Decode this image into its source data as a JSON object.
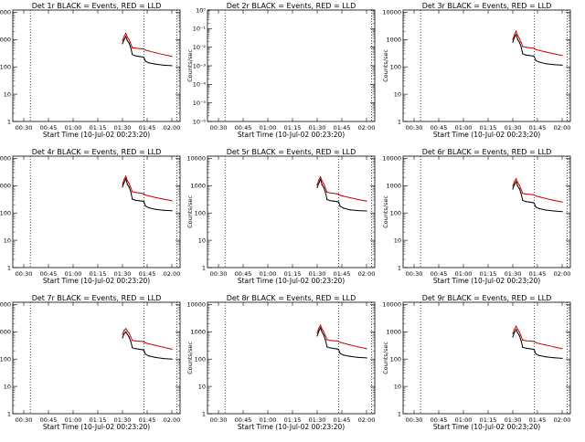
{
  "chart_data": [
    {
      "type": "line",
      "title": "Det 1r BLACK = Events, RED = LLD",
      "xlabel": "Start Time (10-Jul-02 00:23:20)",
      "ylabel": "Counts/sec",
      "scale": "log",
      "ylim": [
        1,
        12000
      ],
      "xlim": [
        "00:23:20",
        "02:05:00"
      ],
      "x_ticks": [
        "00:30",
        "00:45",
        "01:00",
        "01:15",
        "01:30",
        "01:45",
        "02:00"
      ],
      "y_ticks": [
        "1",
        "10",
        "100",
        "1000",
        "10000"
      ],
      "vlines": [
        "00:34",
        "01:43",
        "02:03"
      ],
      "series": [
        {
          "name": "Events",
          "color": "#000000",
          "x": [
            "01:30",
            "01:31",
            "01:32",
            "01:33",
            "01:34",
            "01:35",
            "01:36",
            "01:38",
            "01:40",
            "01:42",
            "01:43",
            "01:44",
            "01:46",
            "01:50",
            "01:55",
            "02:00"
          ],
          "values": [
            700,
            1000,
            1300,
            900,
            750,
            500,
            280,
            250,
            240,
            230,
            220,
            160,
            140,
            125,
            115,
            110
          ]
        },
        {
          "name": "LLD",
          "color": "#cc0000",
          "x": [
            "01:30",
            "01:31",
            "01:32",
            "01:33",
            "01:34",
            "01:35",
            "01:36",
            "01:38",
            "01:40",
            "01:42",
            "01:43",
            "01:44",
            "01:46",
            "01:50",
            "01:55",
            "02:00"
          ],
          "values": [
            900,
            1300,
            1700,
            1200,
            1000,
            700,
            500,
            480,
            470,
            460,
            450,
            410,
            380,
            330,
            280,
            240
          ]
        }
      ]
    },
    {
      "type": "line",
      "title": "Det 2r BLACK = Events, RED = LLD",
      "xlabel": "Start Time (10-Jul-02 00:23:20)",
      "ylabel": "Counts/sec",
      "scale": "log",
      "ylim": [
        1e-06,
        1
      ],
      "xlim": [
        "00:23:20",
        "02:05:00"
      ],
      "x_ticks": [
        "00:30",
        "00:45",
        "01:00",
        "01:15",
        "01:30",
        "01:45",
        "02:00"
      ],
      "y_ticks": [
        "10⁻⁶",
        "10⁻⁵",
        "10⁻⁴",
        "10⁻³",
        "10⁻²",
        "10⁻¹",
        "10⁰"
      ],
      "vlines": [
        "00:34",
        "02:03"
      ],
      "series": []
    },
    {
      "type": "line",
      "title": "Det 3r BLACK = Events, RED = LLD",
      "xlabel": "Start Time (10-Jul-02 00:23:20)",
      "ylabel": "Counts/sec",
      "scale": "log",
      "ylim": [
        1,
        12000
      ],
      "xlim": [
        "00:23:20",
        "02:05:00"
      ],
      "x_ticks": [
        "00:30",
        "00:45",
        "01:00",
        "01:15",
        "01:30",
        "01:45",
        "02:00"
      ],
      "y_ticks": [
        "1",
        "10",
        "100",
        "1000",
        "10000"
      ],
      "vlines": [
        "00:34",
        "01:43",
        "02:03"
      ],
      "series": [
        {
          "name": "Events",
          "color": "#000000",
          "x": [
            "01:30",
            "01:31",
            "01:32",
            "01:33",
            "01:34",
            "01:35",
            "01:36",
            "01:38",
            "01:40",
            "01:42",
            "01:43",
            "01:44",
            "01:46",
            "01:50",
            "01:55",
            "02:00"
          ],
          "values": [
            800,
            1200,
            1500,
            1000,
            800,
            550,
            300,
            270,
            260,
            250,
            240,
            170,
            150,
            130,
            120,
            115
          ]
        },
        {
          "name": "LLD",
          "color": "#cc0000",
          "x": [
            "01:30",
            "01:31",
            "01:32",
            "01:33",
            "01:34",
            "01:35",
            "01:36",
            "01:38",
            "01:40",
            "01:42",
            "01:43",
            "01:44",
            "01:46",
            "01:50",
            "01:55",
            "02:00"
          ],
          "values": [
            1000,
            1500,
            2000,
            1400,
            1100,
            800,
            560,
            520,
            500,
            490,
            480,
            430,
            400,
            350,
            300,
            260
          ]
        }
      ]
    },
    {
      "type": "line",
      "title": "Det 4r BLACK = Events, RED = LLD",
      "xlabel": "Start Time (10-Jul-02 00:23:20)",
      "ylabel": "Counts/sec",
      "scale": "log",
      "ylim": [
        1,
        12000
      ],
      "xlim": [
        "00:23:20",
        "02:05:00"
      ],
      "x_ticks": [
        "00:30",
        "00:45",
        "01:00",
        "01:15",
        "01:30",
        "01:45",
        "02:00"
      ],
      "y_ticks": [
        "1",
        "10",
        "100",
        "1000",
        "10000"
      ],
      "vlines": [
        "00:34",
        "01:43",
        "02:03"
      ],
      "series": [
        {
          "name": "Events",
          "color": "#000000",
          "x": [
            "01:30",
            "01:31",
            "01:32",
            "01:33",
            "01:34",
            "01:35",
            "01:36",
            "01:38",
            "01:40",
            "01:42",
            "01:43",
            "01:44",
            "01:46",
            "01:50",
            "01:55",
            "02:00"
          ],
          "values": [
            900,
            1300,
            1800,
            1100,
            900,
            600,
            320,
            290,
            280,
            270,
            260,
            180,
            155,
            135,
            125,
            120
          ]
        },
        {
          "name": "LLD",
          "color": "#cc0000",
          "x": [
            "01:30",
            "01:31",
            "01:32",
            "01:33",
            "01:34",
            "01:35",
            "01:36",
            "01:38",
            "01:40",
            "01:42",
            "01:43",
            "01:44",
            "01:46",
            "01:50",
            "01:55",
            "02:00"
          ],
          "values": [
            1100,
            1700,
            2200,
            1500,
            1200,
            850,
            600,
            560,
            540,
            520,
            500,
            450,
            420,
            370,
            320,
            280
          ]
        }
      ]
    },
    {
      "type": "line",
      "title": "Det 5r BLACK = Events, RED = LLD",
      "xlabel": "Start Time (10-Jul-02 00:23:20)",
      "ylabel": "Counts/sec",
      "scale": "log",
      "ylim": [
        1,
        12000
      ],
      "xlim": [
        "00:23:20",
        "02:05:00"
      ],
      "x_ticks": [
        "00:30",
        "00:45",
        "01:00",
        "01:15",
        "01:30",
        "01:45",
        "02:00"
      ],
      "y_ticks": [
        "1",
        "10",
        "100",
        "1000",
        "10000"
      ],
      "vlines": [
        "00:34",
        "01:43",
        "02:03"
      ],
      "series": [
        {
          "name": "Events",
          "color": "#000000",
          "x": [
            "01:30",
            "01:31",
            "01:32",
            "01:33",
            "01:34",
            "01:35",
            "01:36",
            "01:38",
            "01:40",
            "01:42",
            "01:43",
            "01:44",
            "01:46",
            "01:50",
            "01:55",
            "02:00"
          ],
          "values": [
            850,
            1250,
            1700,
            1050,
            850,
            580,
            310,
            280,
            270,
            260,
            250,
            175,
            150,
            130,
            122,
            118
          ]
        },
        {
          "name": "LLD",
          "color": "#cc0000",
          "x": [
            "01:30",
            "01:31",
            "01:32",
            "01:33",
            "01:34",
            "01:35",
            "01:36",
            "01:38",
            "01:40",
            "01:42",
            "01:43",
            "01:44",
            "01:46",
            "01:50",
            "01:55",
            "02:00"
          ],
          "values": [
            1050,
            1600,
            2100,
            1450,
            1150,
            820,
            580,
            540,
            520,
            500,
            490,
            440,
            410,
            360,
            310,
            270
          ]
        }
      ]
    },
    {
      "type": "line",
      "title": "Det 6r BLACK = Events, RED = LLD",
      "xlabel": "Start Time (10-Jul-02 00:23:20)",
      "ylabel": "Counts/sec",
      "scale": "log",
      "ylim": [
        1,
        12000
      ],
      "xlim": [
        "00:23:20",
        "02:05:00"
      ],
      "x_ticks": [
        "00:30",
        "00:45",
        "01:00",
        "01:15",
        "01:30",
        "01:45",
        "02:00"
      ],
      "y_ticks": [
        "1",
        "10",
        "100",
        "1000",
        "10000"
      ],
      "vlines": [
        "00:34",
        "01:43",
        "02:03"
      ],
      "series": [
        {
          "name": "Events",
          "color": "#000000",
          "x": [
            "01:30",
            "01:31",
            "01:32",
            "01:33",
            "01:34",
            "01:35",
            "01:36",
            "01:38",
            "01:40",
            "01:42",
            "01:43",
            "01:44",
            "01:46",
            "01:50",
            "01:55",
            "02:00"
          ],
          "values": [
            750,
            1100,
            1400,
            950,
            780,
            520,
            290,
            260,
            250,
            240,
            230,
            165,
            145,
            128,
            118,
            112
          ]
        },
        {
          "name": "LLD",
          "color": "#cc0000",
          "x": [
            "01:30",
            "01:31",
            "01:32",
            "01:33",
            "01:34",
            "01:35",
            "01:36",
            "01:38",
            "01:40",
            "01:42",
            "01:43",
            "01:44",
            "01:46",
            "01:50",
            "01:55",
            "02:00"
          ],
          "values": [
            950,
            1400,
            1800,
            1300,
            1050,
            740,
            520,
            490,
            480,
            470,
            460,
            420,
            390,
            340,
            290,
            250
          ]
        }
      ]
    },
    {
      "type": "line",
      "title": "Det 7r BLACK = Events, RED = LLD",
      "xlabel": "Start Time (10-Jul-02 00:23:20)",
      "ylabel": "Counts/sec",
      "scale": "log",
      "ylim": [
        1,
        12000
      ],
      "xlim": [
        "00:23:20",
        "02:05:00"
      ],
      "x_ticks": [
        "00:30",
        "00:45",
        "01:00",
        "01:15",
        "01:30",
        "01:45",
        "02:00"
      ],
      "y_ticks": [
        "1",
        "10",
        "100",
        "1000",
        "10000"
      ],
      "vlines": [
        "00:34",
        "01:43",
        "02:03"
      ],
      "series": [
        {
          "name": "Events",
          "color": "#000000",
          "x": [
            "01:30",
            "01:31",
            "01:32",
            "01:33",
            "01:34",
            "01:35",
            "01:36",
            "01:38",
            "01:40",
            "01:42",
            "01:43",
            "01:44",
            "01:46",
            "01:50",
            "01:55",
            "02:00"
          ],
          "values": [
            600,
            850,
            1000,
            800,
            650,
            450,
            260,
            240,
            230,
            220,
            210,
            150,
            130,
            115,
            105,
            100
          ]
        },
        {
          "name": "LLD",
          "color": "#cc0000",
          "x": [
            "01:30",
            "01:31",
            "01:32",
            "01:33",
            "01:34",
            "01:35",
            "01:36",
            "01:38",
            "01:40",
            "01:42",
            "01:43",
            "01:44",
            "01:46",
            "01:50",
            "01:55",
            "02:00"
          ],
          "values": [
            800,
            1100,
            1300,
            1050,
            900,
            650,
            480,
            460,
            450,
            440,
            430,
            390,
            360,
            320,
            270,
            230
          ]
        }
      ]
    },
    {
      "type": "line",
      "title": "Det 8r BLACK = Events, RED = LLD",
      "xlabel": "Start Time (10-Jul-02 00:23:20)",
      "ylabel": "Counts/sec",
      "scale": "log",
      "ylim": [
        1,
        12000
      ],
      "xlim": [
        "00:23:20",
        "02:05:00"
      ],
      "x_ticks": [
        "00:30",
        "00:45",
        "01:00",
        "01:15",
        "01:30",
        "01:45",
        "02:00"
      ],
      "y_ticks": [
        "1",
        "10",
        "100",
        "1000",
        "10000"
      ],
      "vlines": [
        "00:34",
        "01:43",
        "02:03"
      ],
      "series": [
        {
          "name": "Events",
          "color": "#000000",
          "x": [
            "01:30",
            "01:31",
            "01:32",
            "01:33",
            "01:34",
            "01:35",
            "01:36",
            "01:38",
            "01:40",
            "01:42",
            "01:43",
            "01:44",
            "01:46",
            "01:50",
            "01:55",
            "02:00"
          ],
          "values": [
            700,
            1050,
            1400,
            950,
            760,
            500,
            280,
            255,
            245,
            235,
            225,
            160,
            140,
            125,
            115,
            110
          ]
        },
        {
          "name": "LLD",
          "color": "#cc0000",
          "x": [
            "01:30",
            "01:31",
            "01:32",
            "01:33",
            "01:34",
            "01:35",
            "01:36",
            "01:38",
            "01:40",
            "01:42",
            "01:43",
            "01:44",
            "01:46",
            "01:50",
            "01:55",
            "02:00"
          ],
          "values": [
            900,
            1350,
            1750,
            1250,
            1000,
            720,
            510,
            480,
            470,
            460,
            450,
            410,
            380,
            330,
            280,
            240
          ]
        }
      ]
    },
    {
      "type": "line",
      "title": "Det 9r BLACK = Events, RED = LLD",
      "xlabel": "Start Time (10-Jul-02 00:23:20)",
      "ylabel": "Counts/sec",
      "scale": "log",
      "ylim": [
        1,
        12000
      ],
      "xlim": [
        "00:23:20",
        "02:05:00"
      ],
      "x_ticks": [
        "00:30",
        "00:45",
        "01:00",
        "01:15",
        "01:30",
        "01:45",
        "02:00"
      ],
      "y_ticks": [
        "1",
        "10",
        "100",
        "1000",
        "10000"
      ],
      "vlines": [
        "00:34",
        "01:43",
        "02:03"
      ],
      "series": [
        {
          "name": "Events",
          "color": "#000000",
          "x": [
            "01:30",
            "01:31",
            "01:32",
            "01:33",
            "01:34",
            "01:35",
            "01:36",
            "01:38",
            "01:40",
            "01:42",
            "01:43",
            "01:44",
            "01:46",
            "01:50",
            "01:55",
            "02:00"
          ],
          "values": [
            650,
            950,
            1200,
            900,
            720,
            480,
            270,
            250,
            240,
            230,
            220,
            155,
            135,
            120,
            112,
            106
          ]
        },
        {
          "name": "LLD",
          "color": "#cc0000",
          "x": [
            "01:30",
            "01:31",
            "01:32",
            "01:33",
            "01:34",
            "01:35",
            "01:36",
            "01:38",
            "01:40",
            "01:42",
            "01:43",
            "01:44",
            "01:46",
            "01:50",
            "01:55",
            "02:00"
          ],
          "values": [
            850,
            1250,
            1600,
            1200,
            980,
            700,
            500,
            470,
            460,
            450,
            440,
            400,
            370,
            330,
            280,
            240
          ]
        }
      ]
    }
  ]
}
